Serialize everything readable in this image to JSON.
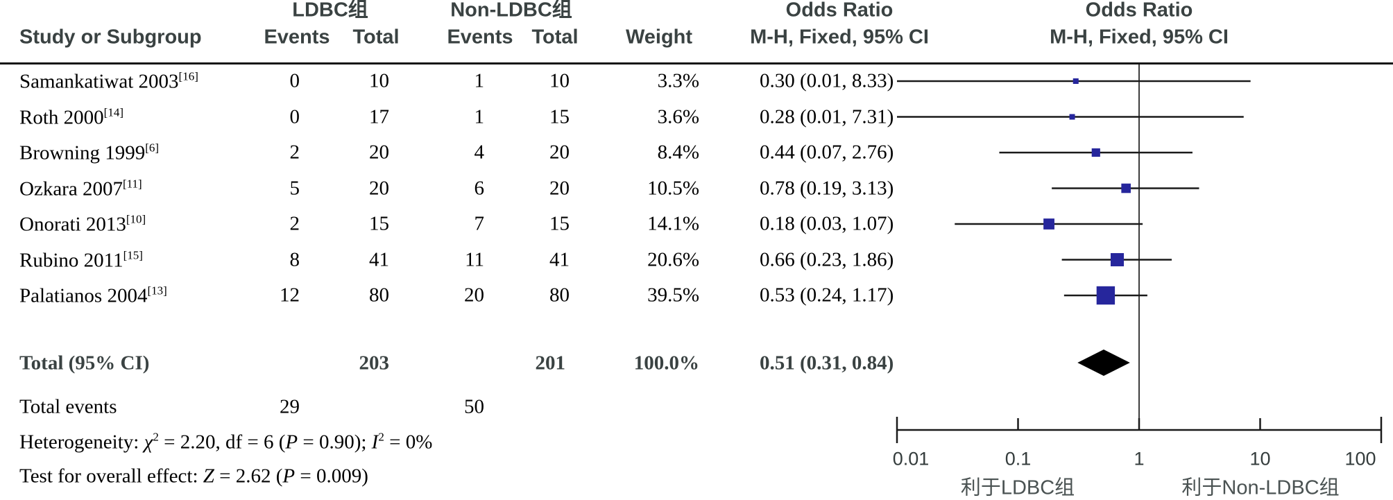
{
  "header": {
    "group1": "LDBC组",
    "group2": "Non-LDBC组",
    "study_col": "Study or Subgroup",
    "events1": "Events",
    "total1": "Total",
    "events2": "Events",
    "total2": "Total",
    "weight": "Weight",
    "or_title": "Odds Ratio",
    "or_sub": "M-H, Fixed, 95% CI",
    "plot_title": "Odds Ratio",
    "plot_sub": "M-H, Fixed, 95% CI"
  },
  "studies": [
    {
      "name": "Samankatiwat 2003",
      "ref": "[16]",
      "e1": "0",
      "t1": "10",
      "e2": "1",
      "t2": "10",
      "weight": "3.3%",
      "or_text": "0.30 (0.01, 8.33)",
      "or": 0.3,
      "lo": 0.01,
      "hi": 8.33,
      "w": 3.3
    },
    {
      "name": "Roth 2000",
      "ref": "[14]",
      "e1": "0",
      "t1": "17",
      "e2": "1",
      "t2": "15",
      "weight": "3.6%",
      "or_text": "0.28 (0.01, 7.31)",
      "or": 0.28,
      "lo": 0.01,
      "hi": 7.31,
      "w": 3.6
    },
    {
      "name": "Browning 1999",
      "ref": "[6]",
      "e1": "2",
      "t1": "20",
      "e2": "4",
      "t2": "20",
      "weight": "8.4%",
      "or_text": "0.44 (0.07, 2.76)",
      "or": 0.44,
      "lo": 0.07,
      "hi": 2.76,
      "w": 8.4
    },
    {
      "name": "Ozkara 2007",
      "ref": "[11]",
      "e1": "5",
      "t1": "20",
      "e2": "6",
      "t2": "20",
      "weight": "10.5%",
      "or_text": "0.78 (0.19, 3.13)",
      "or": 0.78,
      "lo": 0.19,
      "hi": 3.13,
      "w": 10.5
    },
    {
      "name": "Onorati 2013",
      "ref": "[10]",
      "e1": "2",
      "t1": "15",
      "e2": "7",
      "t2": "15",
      "weight": "14.1%",
      "or_text": "0.18 (0.03, 1.07)",
      "or": 0.18,
      "lo": 0.03,
      "hi": 1.07,
      "w": 14.1
    },
    {
      "name": "Rubino 2011",
      "ref": "[15]",
      "e1": "8",
      "t1": "41",
      "e2": "11",
      "t2": "41",
      "weight": "20.6%",
      "or_text": "0.66 (0.23, 1.86)",
      "or": 0.66,
      "lo": 0.23,
      "hi": 1.86,
      "w": 20.6
    },
    {
      "name": "Palatianos 2004",
      "ref": "[13]",
      "e1": "12",
      "t1": "80",
      "e2": "20",
      "t2": "80",
      "weight": "39.5%",
      "or_text": "0.53 (0.24, 1.17)",
      "or": 0.53,
      "lo": 0.24,
      "hi": 1.17,
      "w": 39.5
    }
  ],
  "total": {
    "label": "Total (95% CI)",
    "t1": "203",
    "t2": "201",
    "weight": "100.0%",
    "or_text": "0.51 (0.31, 0.84)",
    "or": 0.51,
    "lo": 0.31,
    "hi": 0.84
  },
  "total_events": {
    "label": "Total events",
    "e1": "29",
    "e2": "50"
  },
  "stats": {
    "het_prefix": "Heterogeneity: ",
    "het_chi": "χ",
    "het_sup": "2",
    "het_mid": " = 2.20, df = 6 (",
    "het_P": "P",
    "het_mid2": " = 0.90); ",
    "het_I": "I",
    "het_sup2": "2",
    "het_end": " = 0%",
    "eff_prefix": "Test for overall effect: ",
    "eff_Z": "Z",
    "eff_mid": " = 2.62 (",
    "eff_P": "P",
    "eff_end": " = 0.009)"
  },
  "axis": {
    "tick_labels": [
      "0.01",
      "0.1",
      "1",
      "10",
      "100"
    ],
    "favors_left": "利于LDBC组",
    "favors_right": "利于Non-LDBC组"
  },
  "colors": {
    "square": "#26269c",
    "diamond": "#000000",
    "ci_line": "#1a1a1a",
    "axis_line": "#1a1a1a",
    "null_line": "#3d3d3d",
    "header_text": "#3a4242"
  },
  "chart_data": {
    "type": "forest",
    "title": "Odds Ratio",
    "effect_measure": "M-H, Fixed, 95% CI",
    "x_scale": "log",
    "x_ticks": [
      0.01,
      0.1,
      1,
      10,
      100
    ],
    "xlim": [
      0.01,
      100
    ],
    "null_value": 1,
    "studies": [
      {
        "name": "Samankatiwat 2003 [16]",
        "events_ldbc": 0,
        "total_ldbc": 10,
        "events_nonldbc": 1,
        "total_nonldbc": 10,
        "weight_pct": 3.3,
        "or": 0.3,
        "ci": [
          0.01,
          8.33
        ]
      },
      {
        "name": "Roth 2000 [14]",
        "events_ldbc": 0,
        "total_ldbc": 17,
        "events_nonldbc": 1,
        "total_nonldbc": 15,
        "weight_pct": 3.6,
        "or": 0.28,
        "ci": [
          0.01,
          7.31
        ]
      },
      {
        "name": "Browning 1999 [6]",
        "events_ldbc": 2,
        "total_ldbc": 20,
        "events_nonldbc": 4,
        "total_nonldbc": 20,
        "weight_pct": 8.4,
        "or": 0.44,
        "ci": [
          0.07,
          2.76
        ]
      },
      {
        "name": "Ozkara 2007 [11]",
        "events_ldbc": 5,
        "total_ldbc": 20,
        "events_nonldbc": 6,
        "total_nonldbc": 20,
        "weight_pct": 10.5,
        "or": 0.78,
        "ci": [
          0.19,
          3.13
        ]
      },
      {
        "name": "Onorati 2013 [10]",
        "events_ldbc": 2,
        "total_ldbc": 15,
        "events_nonldbc": 7,
        "total_nonldbc": 15,
        "weight_pct": 14.1,
        "or": 0.18,
        "ci": [
          0.03,
          1.07
        ]
      },
      {
        "name": "Rubino 2011 [15]",
        "events_ldbc": 8,
        "total_ldbc": 41,
        "events_nonldbc": 11,
        "total_nonldbc": 41,
        "weight_pct": 20.6,
        "or": 0.66,
        "ci": [
          0.23,
          1.86
        ]
      },
      {
        "name": "Palatianos 2004 [13]",
        "events_ldbc": 12,
        "total_ldbc": 80,
        "events_nonldbc": 20,
        "total_nonldbc": 80,
        "weight_pct": 39.5,
        "or": 0.53,
        "ci": [
          0.24,
          1.17
        ]
      }
    ],
    "total": {
      "name": "Total (95% CI)",
      "total_ldbc": 203,
      "total_nonldbc": 201,
      "weight_pct": 100.0,
      "or": 0.51,
      "ci": [
        0.31,
        0.84
      ],
      "total_events_ldbc": 29,
      "total_events_nonldbc": 50
    },
    "heterogeneity": "chi2 = 2.20, df = 6 (P = 0.90); I2 = 0%",
    "overall_effect": "Z = 2.62 (P = 0.009)",
    "favors_left": "利于LDBC组",
    "favors_right": "利于Non-LDBC组",
    "legend_position": "none",
    "grid": false
  }
}
